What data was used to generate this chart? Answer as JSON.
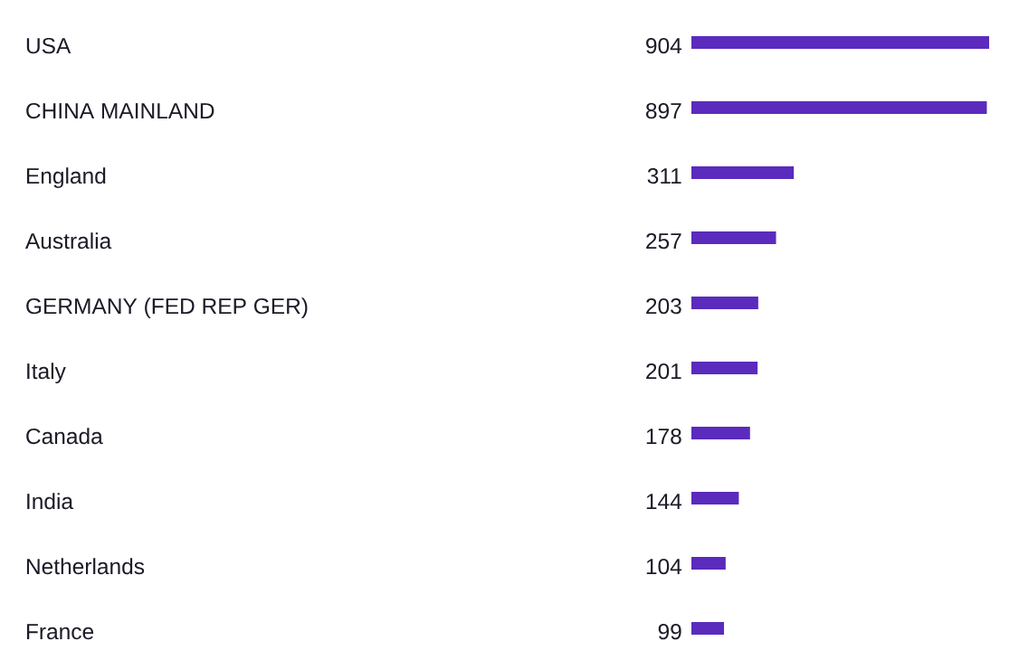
{
  "chart_data": {
    "type": "bar",
    "orientation": "horizontal",
    "categories": [
      "USA",
      "CHINA MAINLAND",
      "England",
      "Australia",
      "GERMANY (FED REP GER)",
      "Italy",
      "Canada",
      "India",
      "Netherlands",
      "France"
    ],
    "values": [
      904,
      897,
      311,
      257,
      203,
      201,
      178,
      144,
      104,
      99
    ],
    "color": "#5a2bbd",
    "data_labels": true,
    "tick_labels": "y"
  }
}
